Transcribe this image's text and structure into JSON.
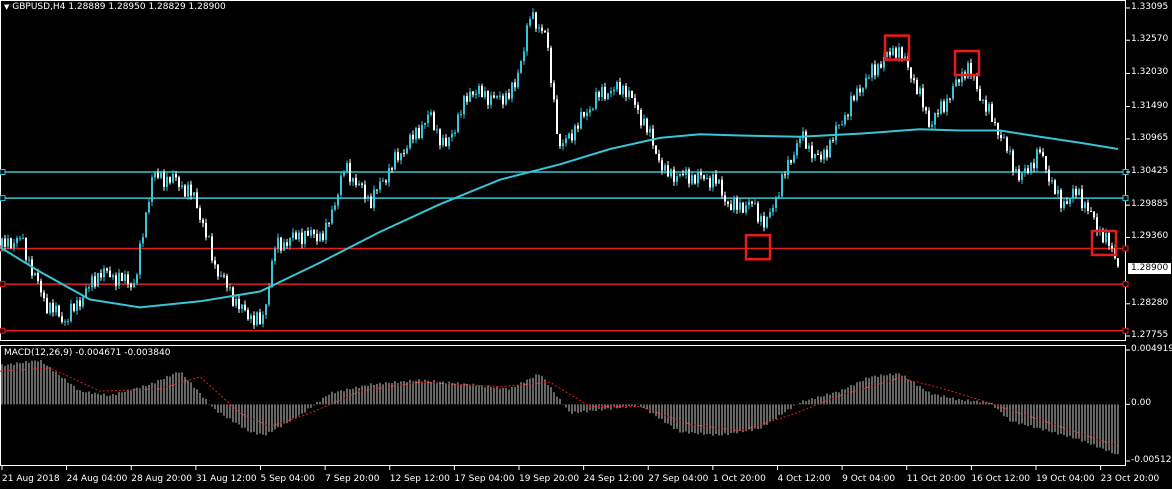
{
  "window": {
    "symbol_header": "GBPUSD,H4",
    "ohlc_text": "1.28889 1.28950 1.28829 1.28900",
    "icon": "down-triangle-icon"
  },
  "price_axis": {
    "ticks": [
      "1.33095",
      "1.32570",
      "1.32030",
      "1.31490",
      "1.30965",
      "1.30425",
      "1.29885",
      "1.29360",
      "1.28280",
      "1.27755"
    ],
    "current_price": "1.28900",
    "range": [
      1.27755,
      1.33095
    ]
  },
  "macd": {
    "header": "MACD(12,26,9) -0.004671 -0.003840",
    "ticks": [
      "0.004919",
      "0.00",
      "-0.005128"
    ],
    "range": [
      -0.005128,
      0.004919
    ]
  },
  "time_axis": {
    "labels": [
      "21 Aug 2018",
      "24 Aug 04:00",
      "28 Aug 20:00",
      "31 Aug 12:00",
      "5 Sep 04:00",
      "7 Sep 20:00",
      "12 Sep 12:00",
      "17 Sep 04:00",
      "19 Sep 20:00",
      "24 Sep 12:00",
      "27 Sep 04:00",
      "1 Oct 20:00",
      "4 Oct 12:00",
      "9 Oct 04:00",
      "11 Oct 20:00",
      "16 Oct 12:00",
      "19 Oct 04:00",
      "23 Oct 20:00"
    ]
  },
  "lines": {
    "horizontal_levels": [
      {
        "price": 1.30425,
        "color": "#36c6d8"
      },
      {
        "price": 1.3,
        "color": "#36c6d8"
      },
      {
        "price": 1.2918,
        "color": "#e81b1b"
      },
      {
        "price": 1.286,
        "color": "#e81b1b"
      },
      {
        "price": 1.2784,
        "color": "#e81b1b"
      }
    ],
    "moving_average_color": "#36c6d8",
    "marker_color": "#e81b1b",
    "candle_up_color": "#36c6d8",
    "candle_down_color": "#ffffff",
    "macd_hist_color": "#cccccc",
    "macd_signal_color": "#e81b1b"
  },
  "chart_data": {
    "type": "line",
    "anchors": [
      {
        "t": 0,
        "price": 1.292
      },
      {
        "t": 20,
        "price": 1.2935
      },
      {
        "t": 45,
        "price": 1.283
      },
      {
        "t": 65,
        "price": 1.28
      },
      {
        "t": 100,
        "price": 1.288
      },
      {
        "t": 135,
        "price": 1.286
      },
      {
        "t": 152,
        "price": 1.3035
      },
      {
        "t": 175,
        "price": 1.303
      },
      {
        "t": 195,
        "price": 1.3
      },
      {
        "t": 215,
        "price": 1.289
      },
      {
        "t": 240,
        "price": 1.282
      },
      {
        "t": 262,
        "price": 1.2795
      },
      {
        "t": 275,
        "price": 1.292
      },
      {
        "t": 300,
        "price": 1.294
      },
      {
        "t": 325,
        "price": 1.294
      },
      {
        "t": 345,
        "price": 1.305
      },
      {
        "t": 370,
        "price": 1.2995
      },
      {
        "t": 395,
        "price": 1.306
      },
      {
        "t": 430,
        "price": 1.3135
      },
      {
        "t": 445,
        "price": 1.308
      },
      {
        "t": 470,
        "price": 1.3175
      },
      {
        "t": 500,
        "price": 1.316
      },
      {
        "t": 515,
        "price": 1.318
      },
      {
        "t": 530,
        "price": 1.3295
      },
      {
        "t": 545,
        "price": 1.327
      },
      {
        "t": 560,
        "price": 1.308
      },
      {
        "t": 580,
        "price": 1.3125
      },
      {
        "t": 600,
        "price": 1.317
      },
      {
        "t": 625,
        "price": 1.318
      },
      {
        "t": 645,
        "price": 1.312
      },
      {
        "t": 665,
        "price": 1.304
      },
      {
        "t": 690,
        "price": 1.3035
      },
      {
        "t": 715,
        "price": 1.303
      },
      {
        "t": 730,
        "price": 1.2985
      },
      {
        "t": 752,
        "price": 1.299
      },
      {
        "t": 766,
        "price": 1.2955
      },
      {
        "t": 780,
        "price": 1.302
      },
      {
        "t": 800,
        "price": 1.31
      },
      {
        "t": 820,
        "price": 1.306
      },
      {
        "t": 840,
        "price": 1.312
      },
      {
        "t": 860,
        "price": 1.318
      },
      {
        "t": 880,
        "price": 1.322
      },
      {
        "t": 897,
        "price": 1.3245
      },
      {
        "t": 912,
        "price": 1.32
      },
      {
        "t": 930,
        "price": 1.312
      },
      {
        "t": 945,
        "price": 1.3155
      },
      {
        "t": 967,
        "price": 1.3215
      },
      {
        "t": 985,
        "price": 1.315
      },
      {
        "t": 1000,
        "price": 1.3105
      },
      {
        "t": 1020,
        "price": 1.303
      },
      {
        "t": 1040,
        "price": 1.3075
      },
      {
        "t": 1060,
        "price": 1.299
      },
      {
        "t": 1078,
        "price": 1.301
      },
      {
        "t": 1095,
        "price": 1.296
      },
      {
        "t": 1110,
        "price": 1.292
      },
      {
        "t": 1120,
        "price": 1.2893
      }
    ],
    "moving_average": [
      {
        "t": 0,
        "price": 1.292
      },
      {
        "t": 40,
        "price": 1.288
      },
      {
        "t": 90,
        "price": 1.2835
      },
      {
        "t": 140,
        "price": 1.2822
      },
      {
        "t": 200,
        "price": 1.2832
      },
      {
        "t": 260,
        "price": 1.2848
      },
      {
        "t": 320,
        "price": 1.2895
      },
      {
        "t": 380,
        "price": 1.2945
      },
      {
        "t": 440,
        "price": 1.299
      },
      {
        "t": 500,
        "price": 1.303
      },
      {
        "t": 560,
        "price": 1.3055
      },
      {
        "t": 610,
        "price": 1.308
      },
      {
        "t": 660,
        "price": 1.3098
      },
      {
        "t": 700,
        "price": 1.3104
      },
      {
        "t": 740,
        "price": 1.3102
      },
      {
        "t": 800,
        "price": 1.31
      },
      {
        "t": 860,
        "price": 1.3105
      },
      {
        "t": 920,
        "price": 1.3112
      },
      {
        "t": 960,
        "price": 1.311
      },
      {
        "t": 1000,
        "price": 1.311
      },
      {
        "t": 1040,
        "price": 1.31
      },
      {
        "t": 1080,
        "price": 1.309
      },
      {
        "t": 1118,
        "price": 1.308
      }
    ],
    "macd_hist": [
      {
        "t": 0,
        "v": 0.0035
      },
      {
        "t": 40,
        "v": 0.004
      },
      {
        "t": 80,
        "v": 0.0012
      },
      {
        "t": 110,
        "v": 0.0008
      },
      {
        "t": 150,
        "v": 0.0018
      },
      {
        "t": 180,
        "v": 0.003
      },
      {
        "t": 215,
        "v": -0.0005
      },
      {
        "t": 250,
        "v": -0.0025
      },
      {
        "t": 265,
        "v": -0.0028
      },
      {
        "t": 300,
        "v": -0.001
      },
      {
        "t": 330,
        "v": 0.001
      },
      {
        "t": 370,
        "v": 0.0018
      },
      {
        "t": 420,
        "v": 0.0022
      },
      {
        "t": 470,
        "v": 0.0018
      },
      {
        "t": 510,
        "v": 0.0014
      },
      {
        "t": 540,
        "v": 0.0028
      },
      {
        "t": 570,
        "v": -0.0008
      },
      {
        "t": 600,
        "v": -0.0005
      },
      {
        "t": 640,
        "v": -0.0001
      },
      {
        "t": 680,
        "v": -0.0025
      },
      {
        "t": 720,
        "v": -0.0028
      },
      {
        "t": 760,
        "v": -0.0022
      },
      {
        "t": 800,
        "v": 0.0002
      },
      {
        "t": 840,
        "v": 0.0012
      },
      {
        "t": 870,
        "v": 0.0025
      },
      {
        "t": 900,
        "v": 0.0028
      },
      {
        "t": 930,
        "v": 0.001
      },
      {
        "t": 960,
        "v": 0.0004
      },
      {
        "t": 990,
        "v": 0.0002
      },
      {
        "t": 1010,
        "v": -0.0015
      },
      {
        "t": 1040,
        "v": -0.0022
      },
      {
        "t": 1080,
        "v": -0.0032
      },
      {
        "t": 1118,
        "v": -0.0046
      }
    ],
    "macd_signal": [
      {
        "t": 0,
        "v": 0.003
      },
      {
        "t": 50,
        "v": 0.0033
      },
      {
        "t": 100,
        "v": 0.0012
      },
      {
        "t": 160,
        "v": 0.0014
      },
      {
        "t": 200,
        "v": 0.0025
      },
      {
        "t": 240,
        "v": -0.0008
      },
      {
        "t": 270,
        "v": -0.002
      },
      {
        "t": 310,
        "v": -0.0008
      },
      {
        "t": 360,
        "v": 0.0012
      },
      {
        "t": 420,
        "v": 0.002
      },
      {
        "t": 500,
        "v": 0.0016
      },
      {
        "t": 550,
        "v": 0.002
      },
      {
        "t": 590,
        "v": -0.0002
      },
      {
        "t": 640,
        "v": -0.0002
      },
      {
        "t": 690,
        "v": -0.0018
      },
      {
        "t": 740,
        "v": -0.0024
      },
      {
        "t": 790,
        "v": -0.001
      },
      {
        "t": 840,
        "v": 0.0008
      },
      {
        "t": 900,
        "v": 0.0024
      },
      {
        "t": 940,
        "v": 0.0015
      },
      {
        "t": 980,
        "v": 0.0004
      },
      {
        "t": 1020,
        "v": -0.0008
      },
      {
        "t": 1060,
        "v": -0.002
      },
      {
        "t": 1118,
        "v": -0.0038
      }
    ],
    "markers": [
      {
        "t": 897,
        "price": 1.3245
      },
      {
        "t": 967,
        "price": 1.322
      },
      {
        "t": 758,
        "price": 1.292
      },
      {
        "t": 1104,
        "price": 1.2927
      }
    ]
  }
}
